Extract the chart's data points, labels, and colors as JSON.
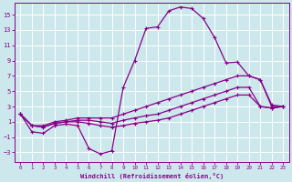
{
  "xlabel": "Windchill (Refroidissement éolien,°C)",
  "bg_color": "#cce8ec",
  "line_color": "#880088",
  "grid_color": "#ffffff",
  "xlim": [
    -0.5,
    23.5
  ],
  "ylim": [
    -4.2,
    16.5
  ],
  "yticks": [
    -3,
    -1,
    1,
    3,
    5,
    7,
    9,
    11,
    13,
    15
  ],
  "xticks": [
    0,
    1,
    2,
    3,
    4,
    5,
    6,
    7,
    8,
    9,
    10,
    11,
    12,
    13,
    14,
    15,
    16,
    17,
    18,
    19,
    20,
    21,
    22,
    23
  ],
  "line1_x": [
    0,
    1,
    2,
    3,
    4,
    5,
    6,
    7,
    8,
    9,
    10,
    11,
    12,
    13,
    14,
    15,
    16,
    17,
    18,
    19,
    20,
    21,
    22,
    23
  ],
  "line1_y": [
    2.0,
    -0.3,
    -0.5,
    0.5,
    0.7,
    0.5,
    -2.5,
    -3.2,
    -2.8,
    5.5,
    9.0,
    13.2,
    13.4,
    15.5,
    16.0,
    15.8,
    14.5,
    12.0,
    8.7,
    8.8,
    7.0,
    6.5,
    3.0,
    3.0
  ],
  "line2_x": [
    0,
    1,
    2,
    3,
    4,
    5,
    6,
    7,
    8,
    9,
    10,
    11,
    12,
    13,
    14,
    15,
    16,
    17,
    18,
    19,
    20,
    21,
    22,
    23
  ],
  "line2_y": [
    2.0,
    0.5,
    0.5,
    1.0,
    1.2,
    1.5,
    1.5,
    1.5,
    1.5,
    2.0,
    2.5,
    3.0,
    3.5,
    4.0,
    4.5,
    5.0,
    5.5,
    6.0,
    6.5,
    7.0,
    7.0,
    6.5,
    3.2,
    3.0
  ],
  "line3_x": [
    0,
    1,
    2,
    3,
    4,
    5,
    6,
    7,
    8,
    9,
    10,
    11,
    12,
    13,
    14,
    15,
    16,
    17,
    18,
    19,
    20,
    21,
    22,
    23
  ],
  "line3_y": [
    2.0,
    0.5,
    0.3,
    0.8,
    1.0,
    1.2,
    1.2,
    1.0,
    0.8,
    1.2,
    1.5,
    1.8,
    2.0,
    2.5,
    3.0,
    3.5,
    4.0,
    4.5,
    5.0,
    5.5,
    5.5,
    3.0,
    2.8,
    3.0
  ],
  "line4_x": [
    0,
    1,
    2,
    3,
    4,
    5,
    6,
    7,
    8,
    9,
    10,
    11,
    12,
    13,
    14,
    15,
    16,
    17,
    18,
    19,
    20,
    21,
    22,
    23
  ],
  "line4_y": [
    2.0,
    0.5,
    0.3,
    0.8,
    1.0,
    1.0,
    0.8,
    0.5,
    0.3,
    0.5,
    0.8,
    1.0,
    1.2,
    1.5,
    2.0,
    2.5,
    3.0,
    3.5,
    4.0,
    4.5,
    4.5,
    3.0,
    2.8,
    3.0
  ]
}
